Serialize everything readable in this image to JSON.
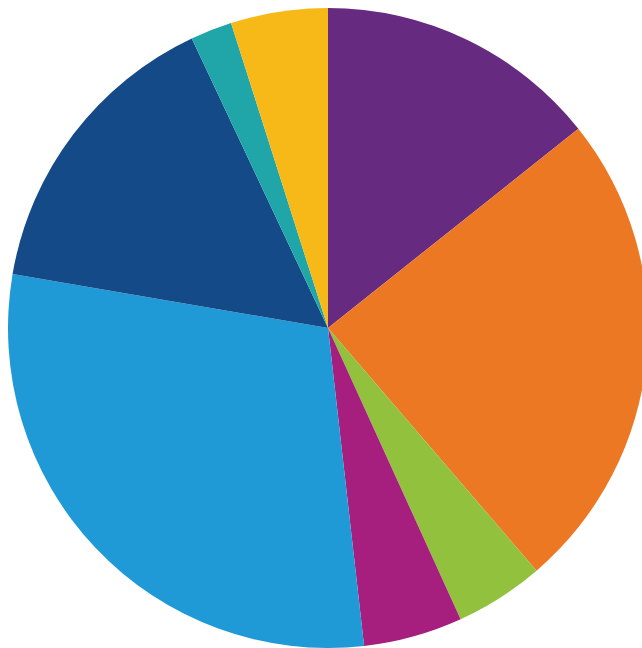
{
  "chart_data": {
    "type": "pie",
    "values": [
      14.3,
      24.4,
      4.5,
      5.0,
      29.5,
      15.3,
      2.1,
      4.9
    ],
    "colors": [
      "#662a80",
      "#ec7823",
      "#92c13e",
      "#a61f7e",
      "#1f9ad6",
      "#134a87",
      "#20a5a8",
      "#f7b918"
    ]
  }
}
